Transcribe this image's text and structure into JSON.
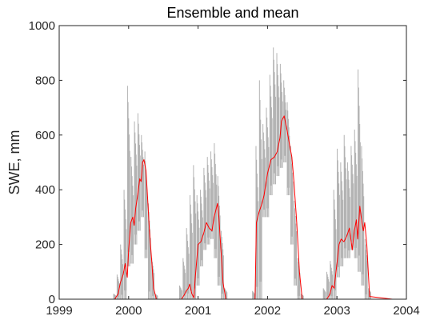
{
  "chart_data": {
    "type": "line",
    "title": "Ensemble and mean",
    "xlabel": "",
    "ylabel": "SWE, mm",
    "xlim": [
      1999,
      2004
    ],
    "ylim": [
      0,
      1000
    ],
    "xticks": [
      1999,
      2000,
      2001,
      2002,
      2003,
      2004
    ],
    "yticks": [
      0,
      200,
      400,
      600,
      800,
      1000
    ],
    "grid": false,
    "legend": "none",
    "series": [
      {
        "role": "ensemble",
        "color": "#b3b3b3",
        "x": [
          1999.8,
          1999.85,
          1999.9,
          1999.95,
          2000.0,
          2000.05,
          2000.1,
          2000.15,
          2000.2,
          2000.25,
          2000.3,
          2000.35,
          2000.4,
          2000.75,
          2000.8,
          2000.85,
          2000.9,
          2000.95,
          2001.0,
          2001.05,
          2001.1,
          2001.15,
          2001.2,
          2001.25,
          2001.3,
          2001.35,
          2001.4,
          2001.8,
          2001.85,
          2001.9,
          2001.95,
          2002.0,
          2002.05,
          2002.1,
          2002.15,
          2002.2,
          2002.25,
          2002.3,
          2002.35,
          2002.4,
          2002.45,
          2002.5,
          2002.82,
          2002.87,
          2002.92,
          2002.97,
          2003.02,
          2003.07,
          2003.12,
          2003.17,
          2003.22,
          2003.27,
          2003.32,
          2003.37,
          2003.42,
          2003.47
        ],
        "min": [
          0,
          0,
          0,
          0,
          120,
          130,
          200,
          250,
          300,
          150,
          0,
          0,
          0,
          0,
          0,
          0,
          0,
          0,
          50,
          120,
          180,
          200,
          220,
          150,
          50,
          0,
          0,
          0,
          0,
          0,
          300,
          300,
          380,
          420,
          450,
          480,
          500,
          380,
          200,
          50,
          0,
          0,
          0,
          0,
          0,
          0,
          80,
          120,
          150,
          150,
          180,
          150,
          100,
          50,
          0,
          0
        ],
        "max": [
          20,
          90,
          200,
          400,
          780,
          520,
          650,
          680,
          600,
          540,
          350,
          150,
          20,
          50,
          150,
          260,
          380,
          490,
          380,
          400,
          480,
          520,
          540,
          570,
          450,
          250,
          40,
          30,
          560,
          800,
          640,
          700,
          820,
          920,
          900,
          860,
          800,
          720,
          560,
          360,
          150,
          20,
          40,
          100,
          140,
          400,
          550,
          500,
          600,
          500,
          560,
          620,
          840,
          560,
          220,
          40
        ]
      },
      {
        "role": "mean",
        "color": "#ff0000",
        "x": [
          1999.7,
          1999.8,
          1999.85,
          1999.88,
          1999.92,
          1999.95,
          1999.98,
          2000.0,
          2000.03,
          2000.06,
          2000.08,
          2000.1,
          2000.13,
          2000.16,
          2000.18,
          2000.2,
          2000.22,
          2000.25,
          2000.28,
          2000.3,
          2000.33,
          2000.36,
          2000.4,
          2000.7,
          2000.76,
          2000.8,
          2000.83,
          2000.86,
          2000.88,
          2000.91,
          2000.94,
          2000.96,
          2001.0,
          2001.04,
          2001.08,
          2001.12,
          2001.16,
          2001.2,
          2001.23,
          2001.26,
          2001.28,
          2001.3,
          2001.33,
          2001.36,
          2001.4,
          2001.75,
          2001.82,
          2001.84,
          2001.86,
          2001.88,
          2001.92,
          2001.95,
          2002.0,
          2002.05,
          2002.1,
          2002.14,
          2002.18,
          2002.2,
          2002.24,
          2002.28,
          2002.32,
          2002.35,
          2002.38,
          2002.42,
          2002.46,
          2002.5,
          2002.8,
          2002.85,
          2002.88,
          2002.9,
          2002.93,
          2002.96,
          2003.0,
          2003.03,
          2003.06,
          2003.1,
          2003.14,
          2003.18,
          2003.22,
          2003.25,
          2003.28,
          2003.3,
          2003.33,
          2003.36,
          2003.38,
          2003.4,
          2003.43,
          2003.47,
          2003.8
        ],
        "y": [
          0,
          0,
          20,
          60,
          90,
          130,
          80,
          180,
          280,
          300,
          270,
          330,
          380,
          440,
          430,
          500,
          510,
          470,
          340,
          250,
          150,
          40,
          0,
          0,
          0,
          15,
          30,
          40,
          55,
          20,
          5,
          80,
          200,
          210,
          240,
          280,
          260,
          250,
          300,
          330,
          350,
          300,
          180,
          60,
          0,
          0,
          0,
          280,
          300,
          320,
          350,
          380,
          460,
          510,
          520,
          540,
          590,
          650,
          670,
          620,
          560,
          520,
          430,
          280,
          100,
          0,
          0,
          0,
          10,
          20,
          50,
          40,
          130,
          200,
          220,
          210,
          230,
          260,
          180,
          250,
          290,
          220,
          340,
          280,
          250,
          280,
          200,
          10,
          0
        ]
      }
    ]
  }
}
